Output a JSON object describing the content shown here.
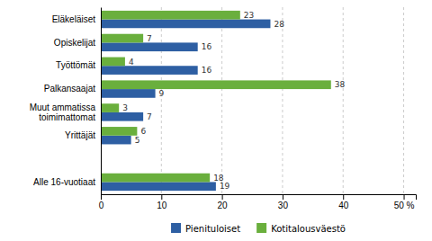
{
  "chart_data": {
    "type": "bar",
    "orientation": "horizontal",
    "categories": [
      "Eläkeläiset",
      "Opiskelijat",
      "Työttömät",
      "Palkansaajat",
      "Muut ammatissa\ntoimimattomat",
      "Yrittäjät",
      null,
      "Alle 16-vuotiaat"
    ],
    "series": [
      {
        "name": "Pienituloiset",
        "color": "#2E5FA3",
        "values": [
          28,
          16,
          16,
          9,
          7,
          5,
          null,
          19
        ]
      },
      {
        "name": "Kotitalousväestö",
        "color": "#6AAF3D",
        "values": [
          23,
          7,
          4,
          38,
          3,
          6,
          null,
          18
        ]
      }
    ],
    "xlim": [
      0,
      52
    ],
    "xticks": [
      0,
      10,
      20,
      30,
      40,
      {
        "value": 50,
        "label": "50 %"
      }
    ],
    "grid": true,
    "data_labels": true,
    "legend": "bottom"
  }
}
